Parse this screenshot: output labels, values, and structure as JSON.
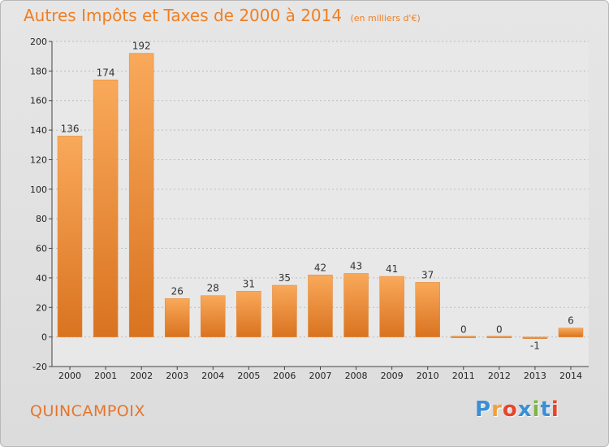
{
  "title": "Autres Impôts et Taxes de 2000 à 2014",
  "subtitle": "(en milliers d'€)",
  "city": "QUINCAMPOIX",
  "logo": {
    "text": "Proxiti",
    "colors": [
      "#3a8fd6",
      "#f2a03d",
      "#e8452c",
      "#3a8fd6",
      "#7ab648",
      "#3a8fd6",
      "#e8452c"
    ]
  },
  "colors": {
    "bar_light": "#f9a95a",
    "bar_dark": "#d97320",
    "title": "#f07f22"
  },
  "chart_data": {
    "type": "bar",
    "categories": [
      "2000",
      "2001",
      "2002",
      "2003",
      "2004",
      "2005",
      "2006",
      "2007",
      "2008",
      "2009",
      "2010",
      "2011",
      "2012",
      "2013",
      "2014"
    ],
    "values": [
      136,
      174,
      192,
      26,
      28,
      31,
      35,
      42,
      43,
      41,
      37,
      0,
      0,
      -1,
      6
    ],
    "ylim": [
      -20,
      200
    ],
    "yticks": [
      -20,
      0,
      20,
      40,
      60,
      80,
      100,
      120,
      140,
      160,
      180,
      200
    ],
    "grid": true
  }
}
